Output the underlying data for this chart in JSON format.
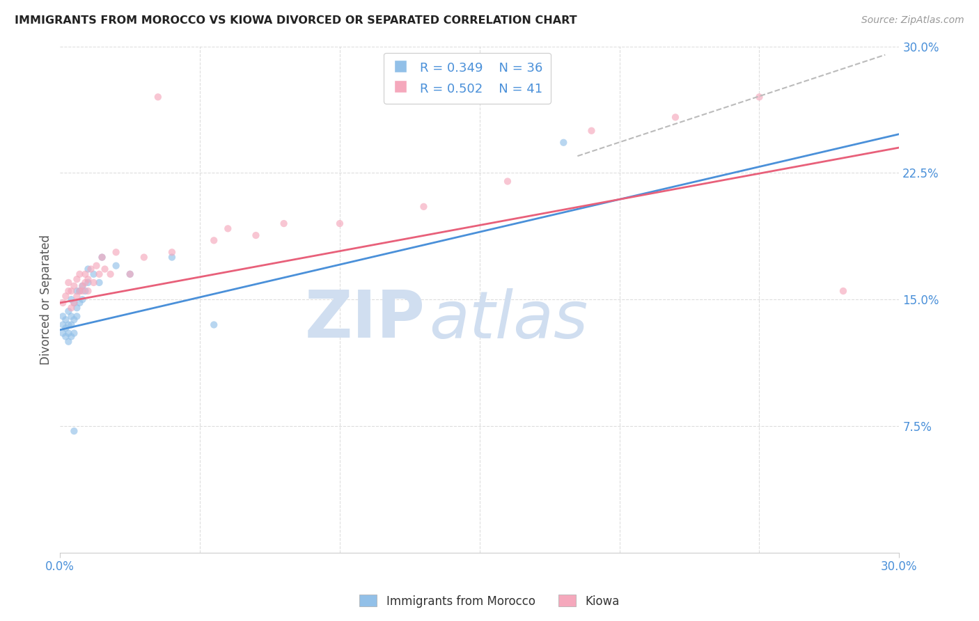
{
  "title": "IMMIGRANTS FROM MOROCCO VS KIOWA DIVORCED OR SEPARATED CORRELATION CHART",
  "source": "Source: ZipAtlas.com",
  "ylabel": "Divorced or Separated",
  "xlim": [
    0.0,
    0.3
  ],
  "ylim": [
    0.0,
    0.3
  ],
  "xtick_labels": [
    "0.0%",
    "30.0%"
  ],
  "xtick_positions": [
    0.0,
    0.3
  ],
  "ytick_labels": [
    "7.5%",
    "15.0%",
    "22.5%",
    "30.0%"
  ],
  "ytick_positions": [
    0.075,
    0.15,
    0.225,
    0.3
  ],
  "color_morocco": "#92C0E8",
  "color_kiowa": "#F5A8BC",
  "color_morocco_line": "#4A90D9",
  "color_kiowa_line": "#E8607A",
  "color_dashed": "#BBBBBB",
  "scatter_alpha": 0.65,
  "scatter_size": 55,
  "morocco_x": [
    0.001,
    0.001,
    0.001,
    0.002,
    0.002,
    0.002,
    0.003,
    0.003,
    0.003,
    0.003,
    0.004,
    0.004,
    0.004,
    0.004,
    0.005,
    0.005,
    0.005,
    0.006,
    0.006,
    0.006,
    0.007,
    0.007,
    0.008,
    0.008,
    0.009,
    0.01,
    0.01,
    0.012,
    0.014,
    0.015,
    0.02,
    0.025,
    0.04,
    0.055,
    0.005,
    0.18
  ],
  "morocco_y": [
    0.13,
    0.135,
    0.14,
    0.128,
    0.133,
    0.138,
    0.125,
    0.13,
    0.135,
    0.143,
    0.128,
    0.135,
    0.14,
    0.15,
    0.13,
    0.138,
    0.148,
    0.14,
    0.145,
    0.155,
    0.148,
    0.155,
    0.15,
    0.158,
    0.155,
    0.16,
    0.168,
    0.165,
    0.16,
    0.175,
    0.17,
    0.165,
    0.175,
    0.135,
    0.072,
    0.243
  ],
  "kiowa_x": [
    0.001,
    0.002,
    0.003,
    0.003,
    0.004,
    0.004,
    0.005,
    0.005,
    0.006,
    0.006,
    0.007,
    0.007,
    0.008,
    0.008,
    0.009,
    0.009,
    0.01,
    0.01,
    0.011,
    0.012,
    0.013,
    0.014,
    0.015,
    0.016,
    0.018,
    0.02,
    0.025,
    0.03,
    0.04,
    0.055,
    0.07,
    0.1,
    0.13,
    0.16,
    0.19,
    0.22,
    0.25,
    0.28,
    0.06,
    0.08,
    0.035
  ],
  "kiowa_y": [
    0.148,
    0.152,
    0.155,
    0.16,
    0.145,
    0.155,
    0.148,
    0.158,
    0.152,
    0.162,
    0.155,
    0.165,
    0.158,
    0.155,
    0.16,
    0.165,
    0.155,
    0.162,
    0.168,
    0.16,
    0.17,
    0.165,
    0.175,
    0.168,
    0.165,
    0.178,
    0.165,
    0.175,
    0.178,
    0.185,
    0.188,
    0.195,
    0.205,
    0.22,
    0.25,
    0.258,
    0.27,
    0.155,
    0.192,
    0.195,
    0.27
  ],
  "morocco_line_x": [
    0.0,
    0.3
  ],
  "morocco_line_y": [
    0.132,
    0.248
  ],
  "kiowa_line_x": [
    0.0,
    0.3
  ],
  "kiowa_line_y": [
    0.148,
    0.24
  ],
  "dashed_line_x": [
    0.185,
    0.295
  ],
  "dashed_line_y": [
    0.235,
    0.295
  ],
  "watermark_zip": "ZIP",
  "watermark_atlas": "atlas",
  "watermark_color": "#D0DEF0",
  "background_color": "#FFFFFF",
  "grid_color": "#DDDDDD",
  "title_color": "#222222",
  "source_color": "#999999",
  "axis_label_color": "#4A90D9",
  "ylabel_color": "#555555"
}
